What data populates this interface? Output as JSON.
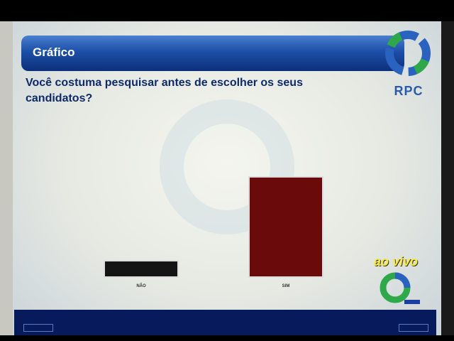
{
  "header": {
    "title": "Gráfico"
  },
  "question": "Você costuma pesquisar antes de escolher os seus candidatos?",
  "brand": {
    "logo_text": "RPC",
    "live_label": "ao vivo"
  },
  "colors": {
    "header_blue": "#1c4fa8",
    "bar_nao": "#141414",
    "bar_sim": "#6a0a0a",
    "live_yellow": "#f7e84a"
  },
  "chart_data": {
    "type": "bar",
    "categories": [
      "NÃO",
      "SIM"
    ],
    "values": [
      14,
      86
    ],
    "title": "",
    "xlabel": "",
    "ylabel": "",
    "ylim": [
      0,
      100
    ],
    "grid": false
  }
}
